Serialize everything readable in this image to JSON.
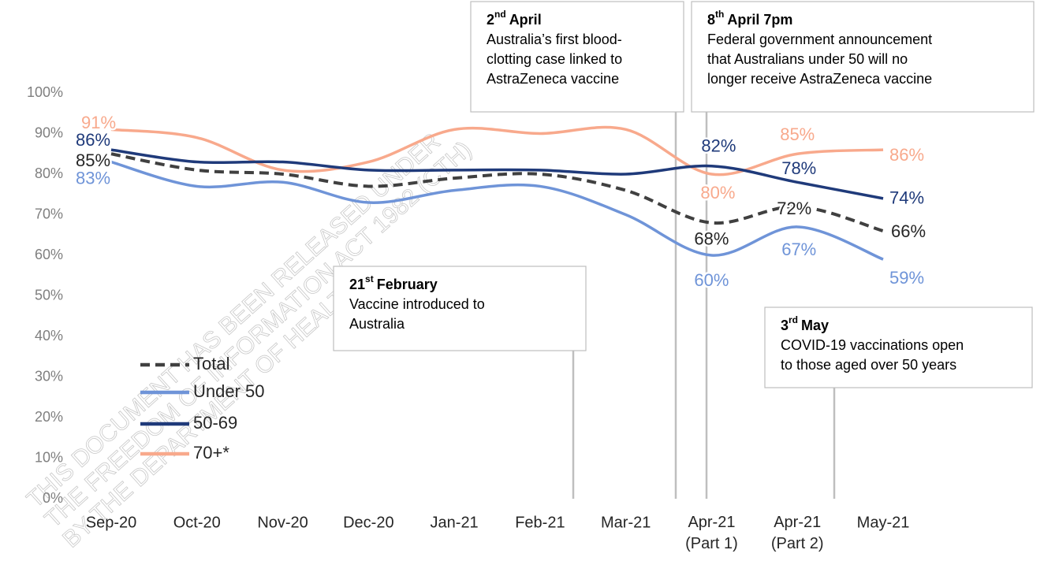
{
  "chart_data": {
    "type": "line",
    "categories": [
      "Sep-20",
      "Oct-20",
      "Nov-20",
      "Dec-20",
      "Jan-21",
      "Feb-21",
      "Mar-21",
      "Apr-21 (Part 1)",
      "Apr-21 (Part 2)",
      "May-21"
    ],
    "ylim": [
      0,
      100
    ],
    "yticks": [
      {
        "value": 0,
        "label": "0%"
      },
      {
        "value": 10,
        "label": "10%"
      },
      {
        "value": 20,
        "label": "20%"
      },
      {
        "value": 30,
        "label": "30%"
      },
      {
        "value": 40,
        "label": "40%"
      },
      {
        "value": 50,
        "label": "50%"
      },
      {
        "value": 60,
        "label": "60%"
      },
      {
        "value": 70,
        "label": "70%"
      },
      {
        "value": 80,
        "label": "80%"
      },
      {
        "value": 90,
        "label": "90%"
      },
      {
        "value": 100,
        "label": "100%"
      }
    ],
    "grid": false,
    "legend": "lower left",
    "series": [
      {
        "name": "Total",
        "color": "#404040",
        "dashed": true,
        "values": [
          85,
          81,
          80,
          77,
          79,
          80,
          76,
          68,
          72,
          66
        ],
        "value_labels": [
          "85%",
          null,
          null,
          null,
          null,
          null,
          null,
          "68%",
          "72%",
          "66%"
        ]
      },
      {
        "name": "Under 50",
        "color": "#6f94d8",
        "values": [
          83,
          77,
          78,
          73,
          76,
          77,
          70,
          60,
          67,
          59
        ],
        "value_labels": [
          "83%",
          null,
          null,
          null,
          null,
          null,
          null,
          "60%",
          "67%",
          "59%"
        ]
      },
      {
        "name": "50-69",
        "color": "#1f3a7a",
        "values": [
          86,
          83,
          83,
          81,
          81,
          81,
          80,
          82,
          78,
          74
        ],
        "value_labels": [
          "86%",
          null,
          null,
          null,
          null,
          null,
          null,
          "82%",
          "78%",
          "74%"
        ]
      },
      {
        "name": "70+*",
        "color": "#f8a98c",
        "values": [
          91,
          89,
          81,
          83,
          91,
          90,
          91,
          80,
          85,
          86
        ],
        "value_labels": [
          "91%",
          null,
          null,
          null,
          null,
          null,
          null,
          "80%",
          "85%",
          "86%"
        ]
      }
    ],
    "annotations": [
      {
        "ordinal": "2",
        "suffix": "nd",
        "date": "April",
        "text": [
          "Australia’s first blood-",
          "clotting case linked to",
          "AstraZeneca vaccine"
        ]
      },
      {
        "ordinal": "8",
        "suffix": "th",
        "date": "April 7pm",
        "text": [
          "Federal government announcement",
          "that Australians under 50 will no",
          "longer receive AstraZeneca vaccine"
        ]
      },
      {
        "ordinal": "21",
        "suffix": "st",
        "date": "February",
        "text": [
          "Vaccine introduced to",
          "Australia"
        ]
      },
      {
        "ordinal": "3",
        "suffix": "rd",
        "date": "May",
        "text": [
          "COVID-19 vaccinations open",
          "to those aged over 50 years"
        ]
      }
    ],
    "watermark": [
      "THIS DOCUMENT HAS BEEN RELEASED UNDER",
      "THE FREEDOM OF INFORMATION ACT 1982 (CTH)",
      "BY THE DEPARTMENT OF HEALTH"
    ]
  }
}
